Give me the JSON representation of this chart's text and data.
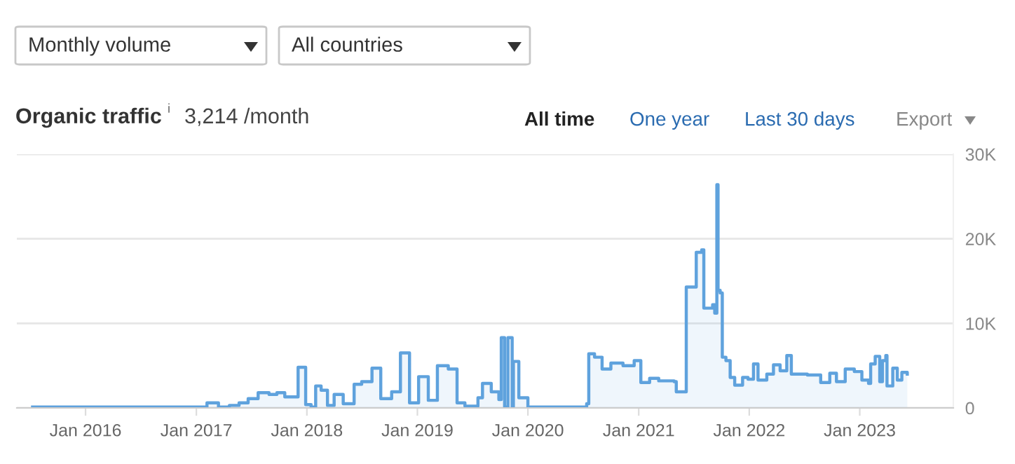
{
  "chart_data": {
    "type": "step",
    "title": "Organic traffic",
    "subtitle": "3,214 /month",
    "annotations": [
      "Monthly volume",
      "All countries",
      "All time",
      "One year",
      "Last 30 days",
      "Export",
      "i"
    ],
    "x": [
      "2015-07-10",
      "2016-11-10",
      "2017-02-05",
      "2017-03-15",
      "2017-04-20",
      "2017-05-22",
      "2017-06-21",
      "2017-07-24",
      "2017-08-29",
      "2017-09-24",
      "2017-10-20",
      "2017-12-03",
      "2017-12-28",
      "2018-01-15",
      "2018-01-30",
      "2018-02-17",
      "2018-03-10",
      "2018-04-01",
      "2018-05-01",
      "2018-06-06",
      "2018-07-01",
      "2018-08-04",
      "2018-09-02",
      "2018-10-08",
      "2018-11-06",
      "2018-12-06",
      "2019-01-05",
      "2019-02-06",
      "2019-03-08",
      "2019-04-13",
      "2019-05-12",
      "2019-06-07",
      "2019-07-20",
      "2019-08-04",
      "2019-09-02",
      "2019-09-27",
      "2019-10-05",
      "2019-10-16",
      "2019-10-27",
      "2019-11-10",
      "2019-11-14",
      "2019-12-02",
      "2020-01-01",
      "2020-06-28",
      "2020-07-13",
      "2020-07-20",
      "2020-08-08",
      "2020-09-02",
      "2020-10-01",
      "2020-11-10",
      "2020-12-17",
      "2021-01-08",
      "2021-02-06",
      "2021-03-08",
      "2021-04-28",
      "2021-05-05",
      "2021-06-07",
      "2021-07-10",
      "2021-07-28",
      "2021-08-04",
      "2021-09-02",
      "2021-09-09",
      "2021-09-16",
      "2021-09-20",
      "2021-09-27",
      "2021-10-04",
      "2021-10-16",
      "2021-10-30",
      "2021-11-14",
      "2021-12-10",
      "2021-12-28",
      "2022-01-15",
      "2022-01-30",
      "2022-02-28",
      "2022-03-22",
      "2022-04-13",
      "2022-05-05",
      "2022-05-20",
      "2022-07-12",
      "2022-08-25",
      "2022-09-24",
      "2022-10-16",
      "2022-11-14",
      "2022-12-14",
      "2023-01-08",
      "2023-01-30",
      "2023-02-06",
      "2023-02-21",
      "2023-03-08",
      "2023-03-17",
      "2023-03-28",
      "2023-04-01",
      "2023-04-20",
      "2023-05-05",
      "2023-05-20",
      "2023-06-07"
    ],
    "series": [
      {
        "color": "#5fa2dd",
        "values": [
          100,
          100,
          600,
          100,
          300,
          600,
          1100,
          1800,
          1600,
          1800,
          1300,
          4800,
          400,
          100,
          2600,
          2100,
          300,
          1600,
          500,
          2800,
          3100,
          4700,
          1100,
          1900,
          6500,
          600,
          3700,
          900,
          5000,
          4600,
          600,
          200,
          1200,
          2900,
          1900,
          1000,
          8300,
          100,
          8300,
          100,
          5500,
          1200,
          100,
          100,
          500,
          6400,
          6000,
          4600,
          5300,
          5000,
          5600,
          3000,
          3500,
          3200,
          3100,
          1900,
          14300,
          18400,
          18700,
          11800,
          12200,
          11200,
          26400,
          13900,
          13600,
          6000,
          5600,
          3600,
          2700,
          3600,
          3400,
          5200,
          3300,
          4000,
          5100,
          4400,
          6200,
          4000,
          3900,
          3000,
          4100,
          3100,
          4600,
          4300,
          3300,
          2900,
          5200,
          6100,
          3100,
          5600,
          6200,
          2600,
          4700,
          3300,
          4200,
          4000
        ]
      }
    ],
    "xlim": [
      "2015-05-19",
      "2023-11-06"
    ],
    "xticks": [
      {
        "value": "2016-01-01",
        "label": "Jan 2016"
      },
      {
        "value": "2017-01-01",
        "label": "Jan 2017"
      },
      {
        "value": "2018-01-01",
        "label": "Jan 2018"
      },
      {
        "value": "2019-01-01",
        "label": "Jan 2019"
      },
      {
        "value": "2020-01-01",
        "label": "Jan 2020"
      },
      {
        "value": "2021-01-01",
        "label": "Jan 2021"
      },
      {
        "value": "2022-01-01",
        "label": "Jan 2022"
      },
      {
        "value": "2023-01-01",
        "label": "Jan 2023"
      }
    ],
    "ylim": [
      0,
      30000
    ],
    "yticks": [
      0,
      {
        "value": 10000,
        "label": "10K"
      },
      {
        "value": 20000,
        "label": "20K"
      },
      {
        "value": 30000,
        "label": "30K"
      }
    ],
    "grid": "y",
    "legend": false
  }
}
